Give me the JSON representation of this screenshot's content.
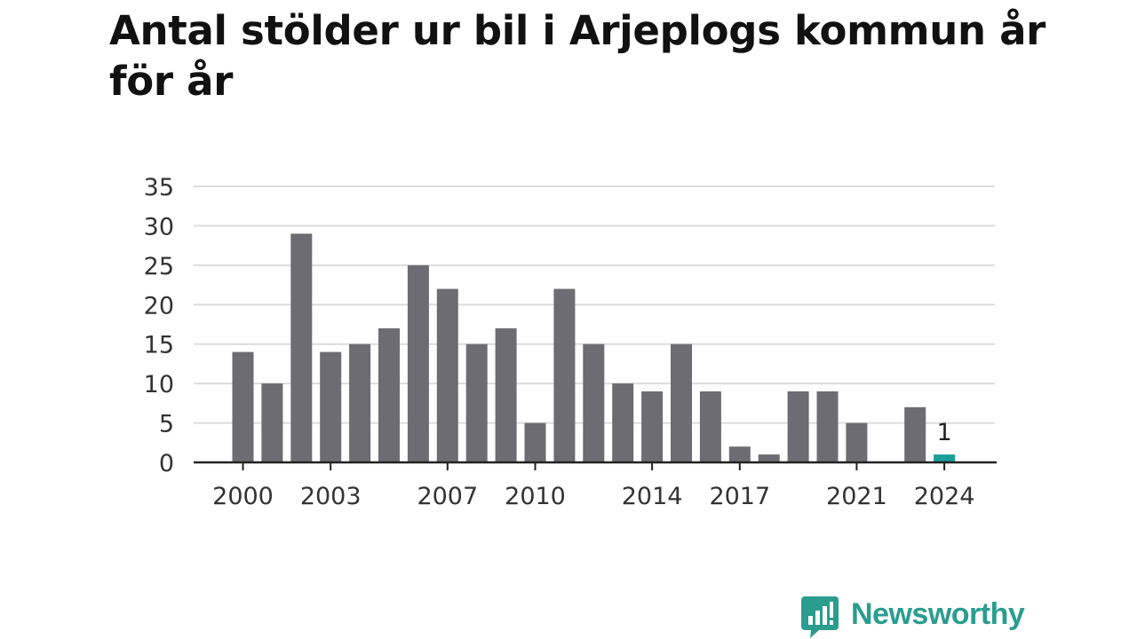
{
  "chart_data": {
    "type": "bar",
    "title": "Antal stölder ur bil i Arjeplogs kommun år för år",
    "xlabel": "",
    "ylabel": "",
    "ylim": [
      0,
      35
    ],
    "yticks": [
      0,
      5,
      10,
      15,
      20,
      25,
      30,
      35
    ],
    "grid": true,
    "categories": [
      2000,
      2001,
      2002,
      2003,
      2004,
      2005,
      2006,
      2007,
      2008,
      2009,
      2010,
      2011,
      2012,
      2013,
      2014,
      2015,
      2016,
      2017,
      2018,
      2019,
      2020,
      2021,
      2022,
      2023,
      2024
    ],
    "xtick_labels": [
      2000,
      2003,
      2007,
      2010,
      2014,
      2017,
      2021,
      2024
    ],
    "values": [
      14,
      10,
      29,
      14,
      15,
      17,
      25,
      22,
      15,
      17,
      5,
      22,
      15,
      10,
      9,
      15,
      9,
      2,
      1,
      9,
      9,
      5,
      0,
      7,
      1
    ],
    "bar_color": "#6d6c72",
    "highlight_color": "#1a9e96",
    "highlight_category": 2024,
    "data_labels": [
      {
        "category": 2024,
        "text": "1"
      }
    ]
  },
  "logo": {
    "text": "Newsworthy",
    "color": "#2a9d8f"
  }
}
